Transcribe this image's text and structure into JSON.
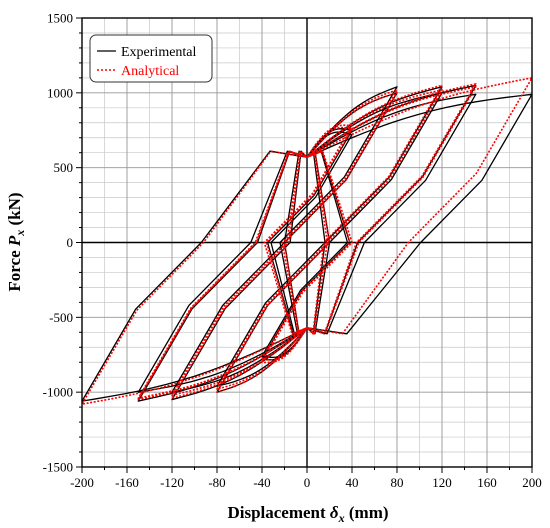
{
  "chart_data": {
    "type": "line",
    "xlabel": "Displacement δx (mm)",
    "xlabel_main": "Displacement ",
    "xlabel_symbol": "δ",
    "xlabel_sub": "x",
    "xlabel_unit": " (mm)",
    "ylabel": "Force Px (kN)",
    "ylabel_main": "Force ",
    "ylabel_symbol": "P",
    "ylabel_sub": "x",
    "ylabel_unit": " (kN)",
    "xlim": [
      -200,
      200
    ],
    "ylim": [
      -1500,
      1500
    ],
    "x_ticks": [
      -200,
      -160,
      -120,
      -80,
      -40,
      0,
      40,
      80,
      120,
      160,
      200
    ],
    "y_ticks": [
      -1500,
      -1000,
      -500,
      0,
      500,
      1000,
      1500
    ],
    "x_minor_step": 20,
    "y_minor_step": 100,
    "grid": true,
    "legend_position": "top-left",
    "series": [
      {
        "name": "Experimental",
        "color": "#000000",
        "style": "solid",
        "loops": [
          {
            "amp": 40,
            "pmax": 750,
            "pmin": -780
          },
          {
            "amp": 40,
            "pmax": 720,
            "pmin": -760
          },
          {
            "amp": 80,
            "pmax": 1000,
            "pmin": -960
          },
          {
            "amp": 80,
            "pmax": 1040,
            "pmin": -1000
          },
          {
            "amp": 120,
            "pmax": 1040,
            "pmin": -1050
          },
          {
            "amp": 120,
            "pmax": 1000,
            "pmin": -1000
          },
          {
            "amp": 150,
            "pmax": 1050,
            "pmin": -1060
          },
          {
            "amp": 150,
            "pmax": 990,
            "pmin": -1000
          },
          {
            "amp": 200,
            "pmax": 990,
            "pmin": -1060
          }
        ]
      },
      {
        "name": "Analytical",
        "color": "#ff0000",
        "style": "dotted",
        "loops": [
          {
            "amp": 40,
            "pmax": 780,
            "pmin": -800
          },
          {
            "amp": 40,
            "pmax": 760,
            "pmin": -780
          },
          {
            "amp": 80,
            "pmax": 1000,
            "pmin": -980
          },
          {
            "amp": 80,
            "pmax": 1020,
            "pmin": -1000
          },
          {
            "amp": 120,
            "pmax": 1050,
            "pmin": -1040
          },
          {
            "amp": 120,
            "pmax": 1020,
            "pmin": -1020
          },
          {
            "amp": 150,
            "pmax": 1060,
            "pmin": -1050
          },
          {
            "amp": 150,
            "pmax": 1040,
            "pmin": -1040
          },
          {
            "amp": 200,
            "pmax": 1100,
            "pmin": -1080
          }
        ]
      }
    ]
  }
}
